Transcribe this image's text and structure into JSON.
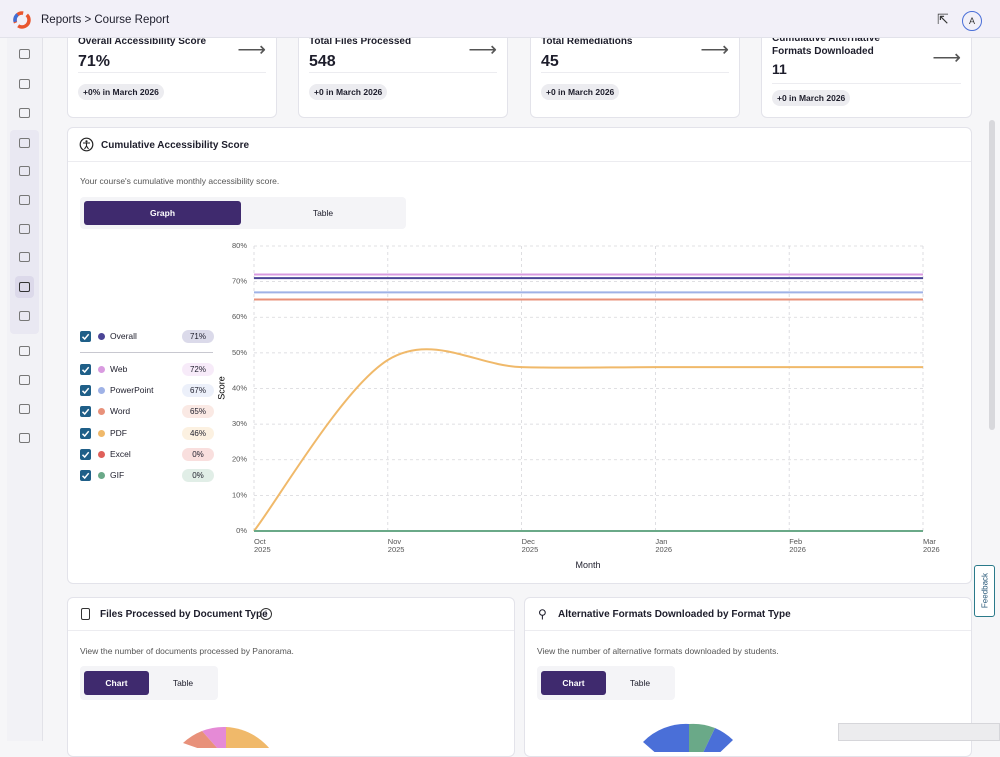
{
  "header": {
    "breadcrumb": "Reports > Course Report",
    "avatar": "A"
  },
  "cards": [
    {
      "title": "Overall Accessibility Score",
      "value": "71%",
      "change": "+0% in March 2026"
    },
    {
      "title": "Total Files Processed",
      "value": 548,
      "change": "+0 in March 2026"
    },
    {
      "title": "Total Remediations",
      "value": 45,
      "change": "+0 in March 2026"
    },
    {
      "title": "Cumulative Alternative Formats Downloaded",
      "value": 11,
      "change": "+0 in March 2026"
    }
  ],
  "score_panel": {
    "title": "Cumulative Accessibility Score",
    "description": "Your course's cumulative monthly accessibility score.",
    "tabs": [
      "Graph",
      "Table"
    ]
  },
  "chart_data": {
    "type": "line",
    "categories": [
      "Oct 2025",
      "Nov 2025",
      "Dec 2025",
      "Jan 2026",
      "Feb 2026",
      "Mar 2026"
    ],
    "series": [
      {
        "name": "Overall",
        "color": "#4b4596",
        "summary": "71%",
        "values": [
          71,
          71,
          71,
          71,
          71,
          71
        ]
      },
      {
        "name": "Web",
        "color": "#d99be0",
        "summary": "72%",
        "values": [
          72,
          72,
          72,
          72,
          72,
          72
        ]
      },
      {
        "name": "PowerPoint",
        "color": "#9fb2e6",
        "summary": "67%",
        "values": [
          67,
          67,
          67,
          67,
          67,
          67
        ]
      },
      {
        "name": "Word",
        "color": "#e8917a",
        "summary": "65%",
        "values": [
          65,
          65,
          65,
          65,
          65,
          65
        ]
      },
      {
        "name": "PDF",
        "color": "#f0b96a",
        "summary": "46%",
        "values": [
          0,
          48,
          46,
          46,
          46,
          46
        ]
      },
      {
        "name": "Excel",
        "color": "#e0605a",
        "summary": "0%",
        "values": [
          0,
          0,
          0,
          0,
          0,
          0
        ]
      },
      {
        "name": "GIF",
        "color": "#6aa988",
        "summary": "0%",
        "values": [
          0,
          0,
          0,
          0,
          0,
          0
        ]
      }
    ],
    "ylim": [
      0,
      80
    ],
    "yticks": [
      {
        "value": 0,
        "label": "0%"
      },
      {
        "value": 10,
        "label": "10%"
      },
      {
        "value": 20,
        "label": "20%"
      },
      {
        "value": 30,
        "label": "30%"
      },
      {
        "value": 40,
        "label": "40%"
      },
      {
        "value": 50,
        "label": "50%"
      },
      {
        "value": 60,
        "label": "60%"
      },
      {
        "value": 70,
        "label": "70%"
      },
      {
        "value": 80,
        "label": "80%"
      }
    ],
    "grid": true,
    "x_label": "Month",
    "y_label": "Score"
  },
  "files_panel": {
    "title": "Files Processed by Document Type",
    "description": "View the number of documents processed by Panorama.",
    "tabs": [
      "Chart",
      "Table"
    ]
  },
  "formats_panel": {
    "title": "Alternative Formats Downloaded by Format Type",
    "description": "View the number of alternative formats downloaded by students.",
    "tabs": [
      "Chart",
      "Table"
    ]
  },
  "feedback": "Feedback"
}
